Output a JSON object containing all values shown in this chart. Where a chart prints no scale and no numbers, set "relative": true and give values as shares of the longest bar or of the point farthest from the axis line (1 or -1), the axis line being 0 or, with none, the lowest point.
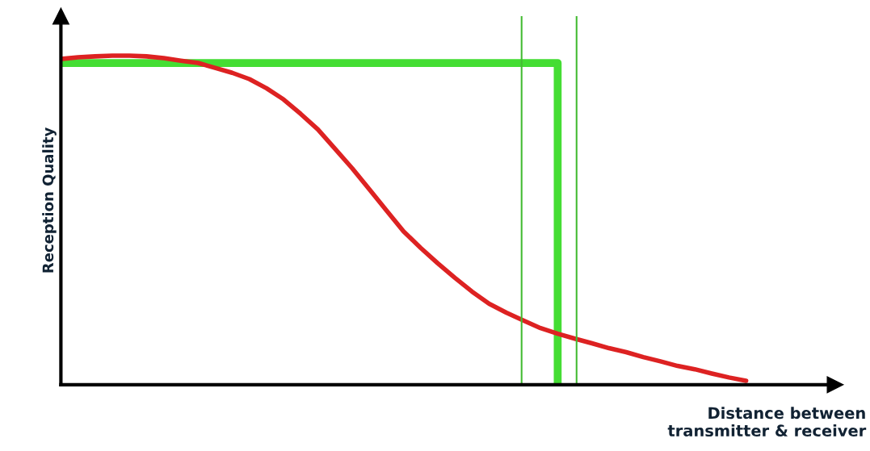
{
  "chart_data": {
    "type": "line",
    "relative": true,
    "ylabel": "Reception Quality",
    "xlabel": "Distance between\ntransmitter & receiver",
    "categories": [
      null,
      null,
      null,
      null,
      null,
      null,
      null,
      null,
      null,
      null,
      null,
      null,
      null,
      null,
      null,
      null,
      null,
      null,
      null,
      null,
      null,
      null,
      null,
      null,
      null,
      null,
      null,
      null,
      null,
      null,
      null,
      null,
      null,
      null,
      null,
      null,
      null,
      null,
      null,
      null,
      null
    ],
    "series": [
      {
        "type": "step",
        "color": "#44dd33",
        "values": [
          0.978,
          0.978,
          0.978,
          0.978,
          0.978,
          0.978,
          0.978,
          0.978,
          0.978,
          0.978,
          0.978,
          0.978,
          0.978,
          0.978,
          0.978,
          0.978,
          0.978,
          0.978,
          0.978,
          0.978,
          0.978,
          0.978,
          0.978,
          0.978,
          0.978,
          0.978,
          0.978,
          0.978,
          0.978,
          0,
          null,
          null,
          null,
          null,
          null,
          null,
          null,
          null,
          null,
          null,
          null
        ]
      },
      {
        "color": "#dd2222",
        "values": [
          0.99,
          0.995,
          0.998,
          1.0,
          1.0,
          0.998,
          0.993,
          0.985,
          0.978,
          0.963,
          0.948,
          0.929,
          0.901,
          0.867,
          0.823,
          0.776,
          0.717,
          0.658,
          0.594,
          0.53,
          0.466,
          0.416,
          0.369,
          0.325,
          0.283,
          0.246,
          0.219,
          0.195,
          0.172,
          0.155,
          0.14,
          0.126,
          0.111,
          0.099,
          0.084,
          0.071,
          0.057,
          0.047,
          0.034,
          0.022,
          0.012
        ]
      }
    ],
    "grid": false,
    "legend": false
  }
}
